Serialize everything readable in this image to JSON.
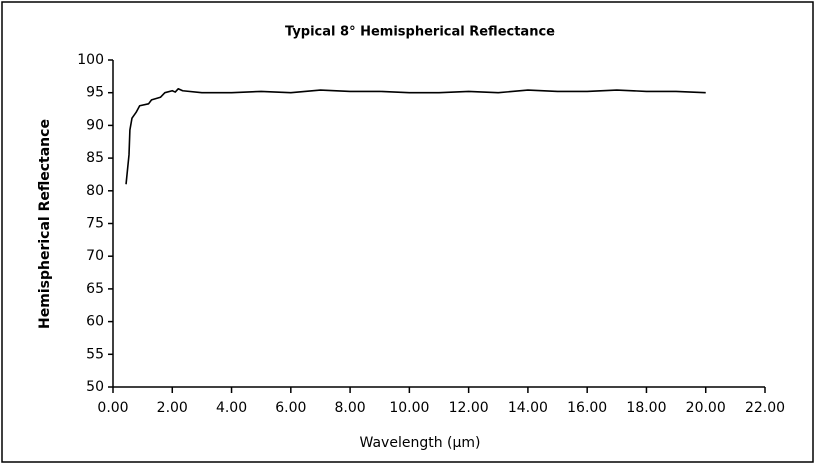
{
  "chart_data": {
    "type": "line",
    "title": "Typical 8° Hemispherical Reflectance",
    "xlabel": "Wavelength (µm)",
    "ylabel": "Hemispherical Reflectance",
    "x": [
      0.44,
      0.54,
      0.57,
      0.64,
      0.78,
      0.9,
      1.2,
      1.3,
      1.6,
      1.75,
      2.0,
      2.1,
      2.2,
      2.35,
      3.0,
      4.0,
      5.0,
      6.0,
      7.0,
      8.0,
      9.0,
      10.0,
      11.0,
      12.0,
      13.0,
      14.0,
      15.0,
      16.0,
      17.0,
      18.0,
      19.0,
      20.0
    ],
    "series": [
      {
        "name": "Reflectance",
        "color": "#000000",
        "values": [
          81,
          85.5,
          89.3,
          91.1,
          92,
          93,
          93.3,
          93.9,
          94.3,
          95,
          95.3,
          95.1,
          95.6,
          95.3,
          95,
          95,
          95.2,
          95,
          95.4,
          95.2,
          95.2,
          95,
          95,
          95.2,
          95,
          95.4,
          95.2,
          95.2,
          95.4,
          95.2,
          95.2,
          95
        ]
      }
    ],
    "xlim": [
      0,
      22
    ],
    "xticks": [
      {
        "value": 0,
        "label": "0.00"
      },
      {
        "value": 2,
        "label": "2.00"
      },
      {
        "value": 4,
        "label": "4.00"
      },
      {
        "value": 6,
        "label": "6.00"
      },
      {
        "value": 8,
        "label": "8.00"
      },
      {
        "value": 10,
        "label": "10.00"
      },
      {
        "value": 12,
        "label": "12.00"
      },
      {
        "value": 14,
        "label": "14.00"
      },
      {
        "value": 16,
        "label": "16.00"
      },
      {
        "value": 18,
        "label": "18.00"
      },
      {
        "value": 20,
        "label": "20.00"
      },
      {
        "value": 22,
        "label": "22.00"
      }
    ],
    "ylim": [
      50,
      100
    ],
    "yticks": [
      50,
      55,
      60,
      65,
      70,
      75,
      80,
      85,
      90,
      95,
      100
    ]
  }
}
